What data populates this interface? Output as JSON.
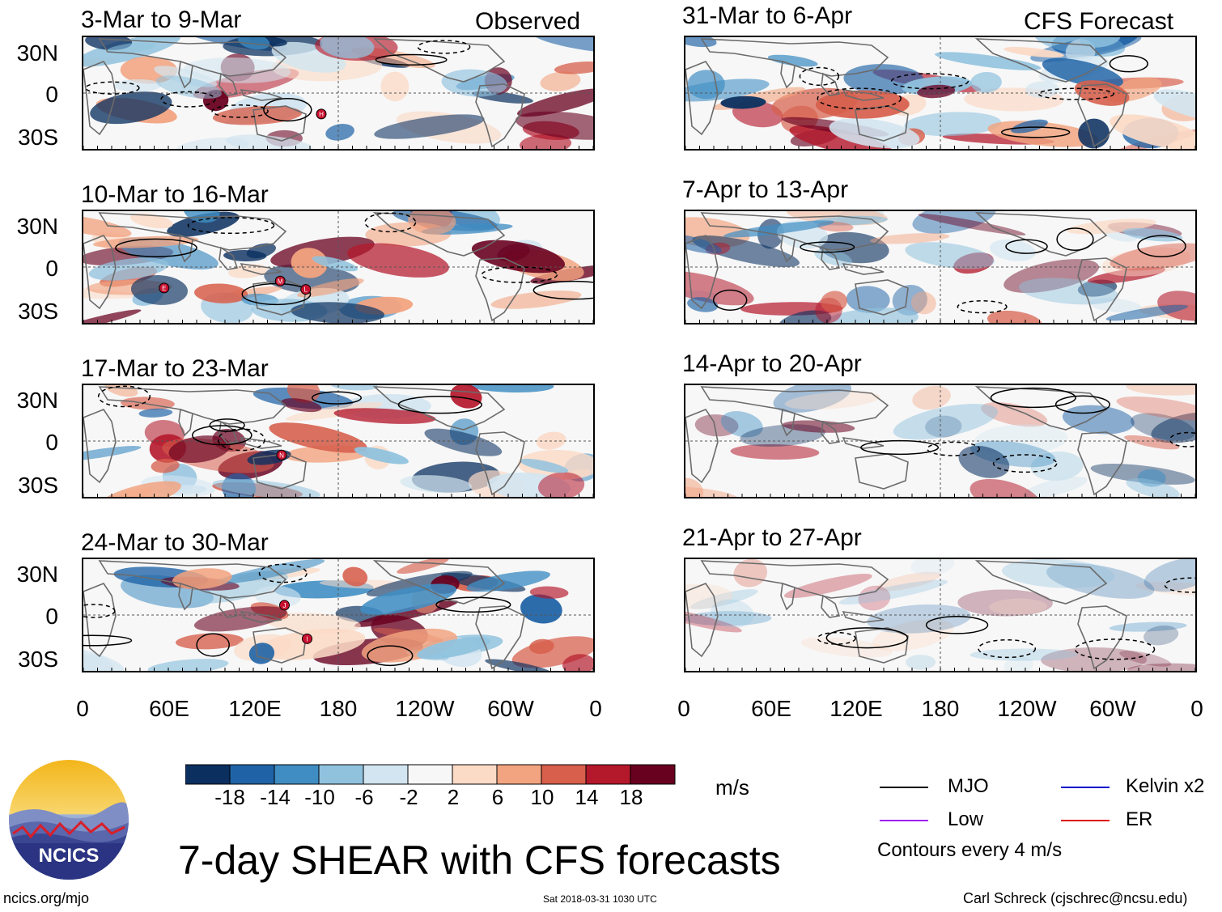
{
  "observed_label": "Observed",
  "forecast_label": "CFS Forecast",
  "panels_left": [
    {
      "period": "3-Mar to 9-Mar",
      "storms": [
        {
          "label": "H",
          "lon": 168,
          "lat": -15
        }
      ]
    },
    {
      "period": "10-Mar to 16-Mar",
      "storms": [
        {
          "label": "E",
          "lon": 57,
          "lat": -15
        },
        {
          "label": "M",
          "lon": 139,
          "lat": -10
        },
        {
          "label": "L",
          "lon": 157,
          "lat": -16
        }
      ]
    },
    {
      "period": "17-Mar to 23-Mar",
      "storms": [
        {
          "label": "N",
          "lon": 140,
          "lat": -10
        }
      ]
    },
    {
      "period": "24-Mar to 30-Mar",
      "storms": [
        {
          "label": "J",
          "lon": 142,
          "lat": 7
        },
        {
          "label": "I",
          "lon": 158,
          "lat": -17
        }
      ]
    }
  ],
  "panels_right": [
    {
      "period": "31-Mar to 6-Apr"
    },
    {
      "period": "7-Apr to 13-Apr"
    },
    {
      "period": "14-Apr to 20-Apr"
    },
    {
      "period": "21-Apr to 27-Apr"
    }
  ],
  "lat_labels": [
    "30N",
    "0",
    "30S"
  ],
  "lon_labels": [
    "0",
    "60E",
    "120E",
    "180",
    "120W",
    "60W",
    "0"
  ],
  "colorbar": {
    "colors": [
      "#0b3060",
      "#1f63a6",
      "#3f8dc3",
      "#90c2de",
      "#d2e5f0",
      "#f7f7f7",
      "#fbdac6",
      "#f2a37f",
      "#d75f4c",
      "#b4182b",
      "#68001f"
    ],
    "tick_labels": [
      "-18",
      "-14",
      "-10",
      "-6",
      "-2",
      "2",
      "6",
      "10",
      "14",
      "18"
    ],
    "units": "m/s"
  },
  "legend": {
    "items": [
      {
        "label": "MJO",
        "color": "#000000"
      },
      {
        "label": "Kelvin x2",
        "color": "#0000cc"
      },
      {
        "label": "Low",
        "color": "#a020f0"
      },
      {
        "label": "ER",
        "color": "#dd0000"
      }
    ],
    "contours_note": "Contours every 4 m/s"
  },
  "main_title": "7-day SHEAR with CFS forecasts",
  "logo_text": "NCICS",
  "website": "ncics.org/mjo",
  "timestamp": "Sat 2018-03-31 1030 UTC",
  "author": "Carl Schreck (cjschrec@ncsu.edu)"
}
